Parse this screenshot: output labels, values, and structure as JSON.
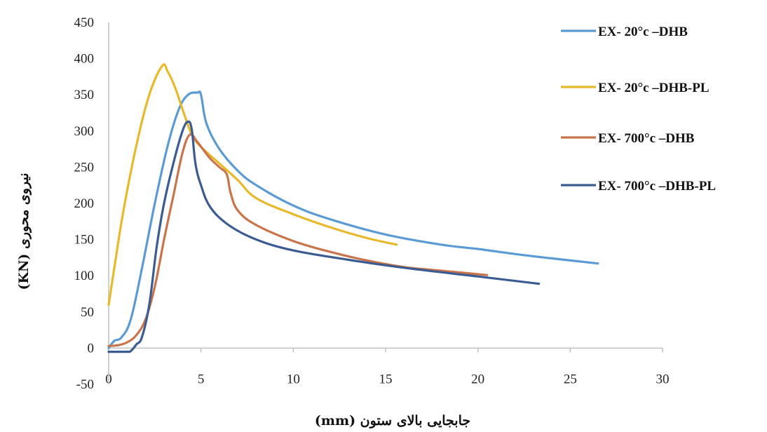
{
  "chart_data": {
    "type": "line",
    "title": "",
    "xlabel": "جابجایی بالای ستون (mm)",
    "ylabel": "نیروی محوری (KN)",
    "xlim": [
      0,
      30
    ],
    "ylim": [
      -50,
      450
    ],
    "x_ticks": [
      "0",
      "5",
      "10",
      "15",
      "20",
      "25",
      "30"
    ],
    "y_ticks": [
      "450",
      "400",
      "350",
      "300",
      "250",
      "200",
      "150",
      "100",
      "50",
      "0",
      "-50"
    ],
    "grid": false,
    "legend_position": "right",
    "series": [
      {
        "name": "EX- 20°c –DHB",
        "color": "#5b9bd5",
        "points": [
          [
            0,
            0
          ],
          [
            0.3,
            10
          ],
          [
            0.7,
            15
          ],
          [
            1.2,
            40
          ],
          [
            1.8,
            110
          ],
          [
            2.5,
            200
          ],
          [
            3.2,
            280
          ],
          [
            3.8,
            330
          ],
          [
            4.3,
            350
          ],
          [
            4.8,
            353
          ],
          [
            5.0,
            350
          ],
          [
            5.3,
            310
          ],
          [
            6.0,
            275
          ],
          [
            7.0,
            245
          ],
          [
            8.0,
            225
          ],
          [
            10.0,
            197
          ],
          [
            12.0,
            178
          ],
          [
            15.0,
            157
          ],
          [
            18.0,
            143
          ],
          [
            20.0,
            137
          ],
          [
            22.0,
            130
          ],
          [
            24.0,
            124
          ],
          [
            26.5,
            117
          ]
        ]
      },
      {
        "name": "EX- 20°c –DHB-PL",
        "color": "#e8b92a",
        "points": [
          [
            0,
            60
          ],
          [
            0.3,
            110
          ],
          [
            0.8,
            190
          ],
          [
            1.5,
            280
          ],
          [
            2.2,
            350
          ],
          [
            2.9,
            390
          ],
          [
            3.2,
            382
          ],
          [
            3.6,
            360
          ],
          [
            4.0,
            330
          ],
          [
            4.5,
            295
          ],
          [
            5.0,
            278
          ],
          [
            6.0,
            255
          ],
          [
            7.0,
            232
          ],
          [
            8.0,
            207
          ],
          [
            10.0,
            185
          ],
          [
            12.0,
            167
          ],
          [
            14.0,
            152
          ],
          [
            15.6,
            143
          ]
        ]
      },
      {
        "name": "EX- 700°c –DHB",
        "color": "#c9744a",
        "points": [
          [
            0,
            3
          ],
          [
            0.5,
            4
          ],
          [
            1.0,
            8
          ],
          [
            1.5,
            18
          ],
          [
            2.0,
            40
          ],
          [
            2.5,
            85
          ],
          [
            3.0,
            150
          ],
          [
            3.5,
            210
          ],
          [
            4.0,
            270
          ],
          [
            4.4,
            295
          ],
          [
            4.8,
            285
          ],
          [
            5.5,
            262
          ],
          [
            6.0,
            250
          ],
          [
            6.4,
            240
          ],
          [
            6.6,
            215
          ],
          [
            7.0,
            190
          ],
          [
            8.0,
            170
          ],
          [
            10.0,
            148
          ],
          [
            12.0,
            133
          ],
          [
            14.0,
            121
          ],
          [
            16.0,
            112
          ],
          [
            18.0,
            107
          ],
          [
            20.5,
            101
          ]
        ]
      },
      {
        "name": "EX- 700°c –DHB-PL",
        "color": "#3b5c93",
        "points": [
          [
            0,
            -5
          ],
          [
            1.0,
            -5
          ],
          [
            1.2,
            -4
          ],
          [
            1.5,
            5
          ],
          [
            1.8,
            15
          ],
          [
            2.2,
            60
          ],
          [
            2.6,
            140
          ],
          [
            3.0,
            200
          ],
          [
            3.5,
            255
          ],
          [
            4.0,
            300
          ],
          [
            4.3,
            313
          ],
          [
            4.5,
            302
          ],
          [
            4.7,
            255
          ],
          [
            5.0,
            225
          ],
          [
            5.5,
            195
          ],
          [
            6.5,
            170
          ],
          [
            8.0,
            150
          ],
          [
            10.0,
            135
          ],
          [
            13.0,
            122
          ],
          [
            16.0,
            111
          ],
          [
            20.0,
            99
          ],
          [
            23.3,
            89
          ]
        ]
      }
    ]
  }
}
